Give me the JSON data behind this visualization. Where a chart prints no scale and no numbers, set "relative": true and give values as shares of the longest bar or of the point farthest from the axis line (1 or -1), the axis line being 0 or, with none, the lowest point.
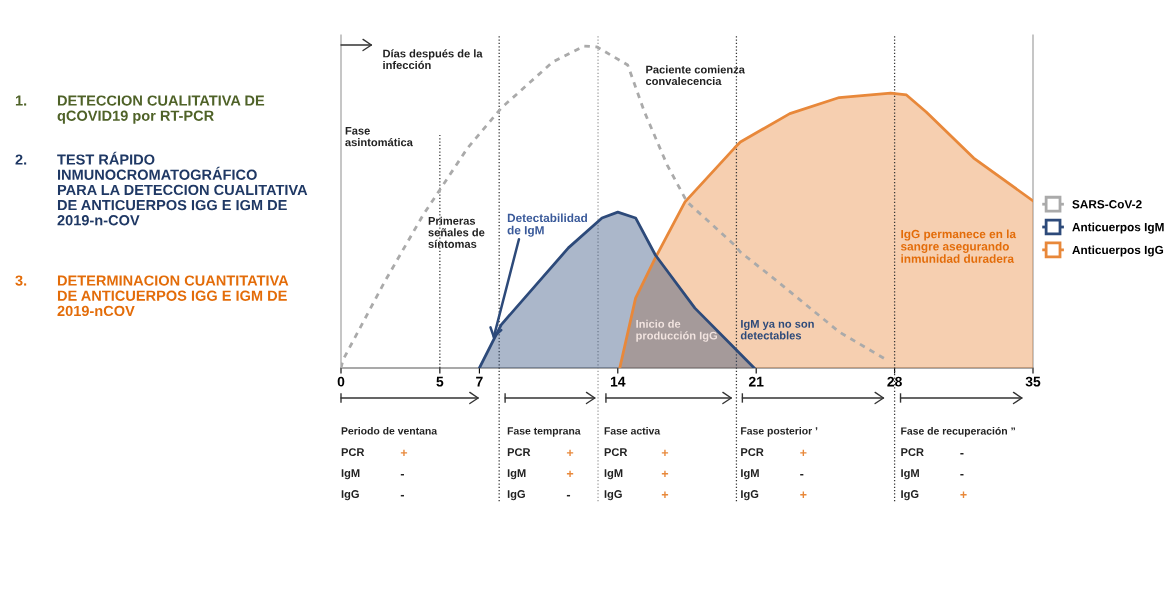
{
  "chart_data": {
    "type": "line",
    "relative": true,
    "x": [
      0,
      0.1,
      2.2,
      4.15,
      6.4,
      8.1,
      10.7,
      12.3,
      12.95,
      14.5,
      15.35,
      16.5,
      17.5,
      19.9,
      20.2,
      21.85,
      25.2,
      27.6
    ],
    "xlim": [
      0,
      35
    ],
    "xticks": [
      0,
      5,
      7,
      14,
      21,
      28,
      35
    ],
    "series": [
      {
        "name": "SARS-CoV-2",
        "line_style": "dashed",
        "color": "#aaaaaa",
        "values": [
          0,
          0.025,
          0.267,
          0.475,
          0.683,
          0.807,
          0.95,
          1.0,
          0.997,
          0.941,
          0.795,
          0.63,
          0.516,
          0.382,
          0.36,
          0.28,
          0.112,
          0.025
        ]
      },
      {
        "name": "Anticuerpos IgM",
        "type": "area",
        "color": "#2d4a7a",
        "x": [
          7,
          8.1,
          11.5,
          13.2,
          14.0,
          14.9,
          15.9,
          17.9,
          19.9,
          20.9
        ],
        "values": [
          0,
          0.134,
          0.373,
          0.466,
          0.484,
          0.466,
          0.351,
          0.186,
          0.062,
          0
        ]
      },
      {
        "name": "Anticuerpos IgG",
        "type": "area",
        "color": "#e8883a",
        "x": [
          14.1,
          14.9,
          15.9,
          17.4,
          19.9,
          20.2,
          22.7,
          25.2,
          27.8,
          28.6,
          29.6,
          32.0,
          35.0
        ],
        "values": [
          0,
          0.217,
          0.342,
          0.516,
          0.683,
          0.702,
          0.79,
          0.84,
          0.854,
          0.848,
          0.795,
          0.652,
          0.519
        ]
      }
    ],
    "ref_lines": [
      {
        "axis": "x",
        "value": 5,
        "line_style": "dotted",
        "color": "#333333"
      },
      {
        "axis": "x",
        "value": 8,
        "line_style": "dotted",
        "color": "#333333"
      },
      {
        "axis": "x",
        "value": 13,
        "line_style": "dotted",
        "color": "#999999"
      },
      {
        "axis": "x",
        "value": 20,
        "line_style": "dotted",
        "color": "#333333"
      },
      {
        "axis": "x",
        "value": 28,
        "line_style": "dotted",
        "color": "#333333"
      }
    ],
    "legend": "right",
    "grid": false,
    "marker": "none",
    "annotations": [
      "1.",
      "DETECCION CUALITATIVA DE\nqCOVID19 por RT-PCR",
      "2.",
      "TEST RÁPIDO\nINMUNOCROMATOGRÁFICO\nPARA LA DETECCION CUALITATIVA\nDE ANTICUERPOS IGG E IGM DE\n2019-n-COV",
      "3.",
      "DETERMINACION CUANTITATIVA\nDE ANTICUERPOS IGG E IGM DE\n2019-nCOV",
      "Días después de la\ninfección",
      "Fase\nasintomática",
      "Primeras\nseñales de\nsíntomas",
      "Detectabilidad\nde IgM",
      "Paciente comienza\nconvalecencia",
      "Inicio de\nproducción IgG",
      "IgM ya no son\ndetectables",
      "IgG permanece en la\nsangre asegurando\ninmunidad duradera",
      "Periodo de ventana",
      "PCR",
      "+",
      "IgM",
      "-",
      "IgG",
      "-",
      "Fase temprana",
      "PCR",
      "+",
      "IgM",
      "+",
      "IgG",
      "-",
      "Fase activa",
      "PCR",
      "+",
      "IgM",
      "+",
      "IgG",
      "+",
      "Fase posterior ’",
      "PCR",
      "+",
      "IgM",
      "-",
      "IgG",
      "+",
      "Fase de recuperación ”",
      "PCR",
      "-",
      "IgM",
      "-",
      "IgG",
      "+"
    ]
  }
}
